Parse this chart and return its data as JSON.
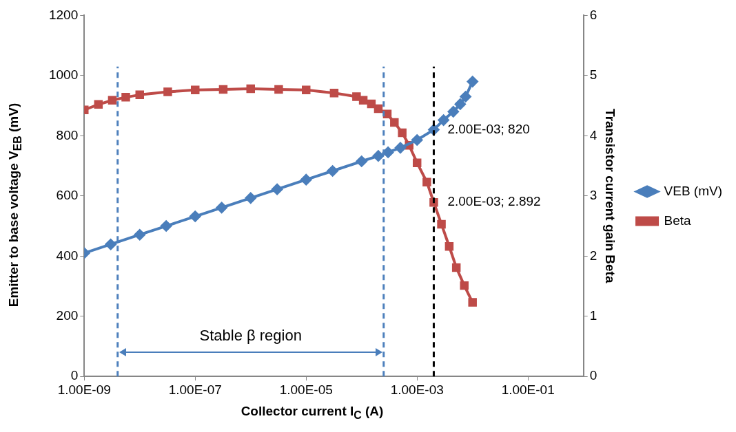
{
  "chart_data": {
    "type": "line",
    "xlabel": "Collector current I$_{C}$ (A)",
    "ylabel": "Emitter to base voltage V$_{EB}$ (mV)",
    "y2label": "Transistor current gain Beta",
    "log": "x",
    "legend": "right",
    "line_style": "solid",
    "xlim": [
      1e-09,
      1
    ],
    "xticks": [
      {
        "value": 1e-09,
        "label": "1.00E-09"
      },
      {
        "value": 1e-07,
        "label": "1.00E-07"
      },
      {
        "value": 1e-05,
        "label": "1.00E-05"
      },
      {
        "value": 0.001,
        "label": "1.00E-03"
      },
      {
        "value": 0.1,
        "label": "1.00E-01"
      }
    ],
    "ylim": [
      0,
      1200
    ],
    "yticks": [
      0,
      200,
      400,
      600,
      800,
      1000,
      1200
    ],
    "y2lim": [
      0,
      6
    ],
    "y2ticks": [
      0,
      1,
      2,
      3,
      4,
      5,
      6
    ],
    "series": [
      {
        "name": "VEB (mV)",
        "color": "#4a7ebb",
        "marker": "diamond",
        "x": [
          1e-09,
          3e-09,
          1e-08,
          3e-08,
          1e-07,
          3e-07,
          1e-06,
          3e-06,
          1e-05,
          3e-05,
          0.0001,
          0.0002,
          0.0003,
          0.0005,
          0.001,
          0.002,
          0.003,
          0.0045,
          0.006,
          0.0075,
          0.01
        ],
        "values": [
          410,
          439,
          471,
          500,
          532,
          561,
          593,
          622,
          654,
          683,
          715,
          733,
          745,
          760,
          786,
          820,
          852,
          880,
          905,
          930,
          980
        ],
        "value_labels": [
          null,
          null,
          null,
          null,
          null,
          null,
          null,
          null,
          null,
          null,
          null,
          null,
          null,
          null,
          null,
          "2.00E-03; 820",
          null,
          null,
          null,
          null,
          null
        ]
      },
      {
        "name": "Beta",
        "color": "#be4b48",
        "marker": "square",
        "axis": "y2",
        "x": [
          1e-09,
          1.8e-09,
          3.2e-09,
          5.6e-09,
          1e-08,
          3.2e-08,
          1e-07,
          3.2e-07,
          1e-06,
          3.2e-06,
          1e-05,
          3.2e-05,
          8.1e-05,
          0.000107,
          0.00015,
          0.0002,
          0.00029,
          0.00039,
          0.00054,
          0.00072,
          0.001,
          0.0015,
          0.002,
          0.00275,
          0.0038,
          0.0051,
          0.0071,
          0.01
        ],
        "values": [
          4.43,
          4.52,
          4.59,
          4.64,
          4.68,
          4.73,
          4.76,
          4.77,
          4.78,
          4.77,
          4.76,
          4.71,
          4.65,
          4.59,
          4.53,
          4.45,
          4.36,
          4.22,
          4.05,
          3.84,
          3.55,
          3.23,
          2.892,
          2.53,
          2.16,
          1.81,
          1.51,
          1.23
        ],
        "value_labels": [
          null,
          null,
          null,
          null,
          null,
          null,
          null,
          null,
          null,
          null,
          null,
          null,
          null,
          null,
          null,
          null,
          null,
          null,
          null,
          null,
          null,
          null,
          "2.00E-03; 2.892",
          null,
          null,
          null,
          null,
          null
        ]
      }
    ],
    "ref_lines": [
      {
        "axis": "x",
        "value": 4e-09,
        "color": "#4f81bd",
        "line_style": "dashed"
      },
      {
        "axis": "x",
        "value": 0.00025,
        "color": "#4f81bd",
        "line_style": "dashed"
      },
      {
        "axis": "x",
        "value": 0.002,
        "color": "#000000",
        "line_style": "dashed"
      }
    ],
    "annotations": [
      "Stable β region"
    ]
  }
}
